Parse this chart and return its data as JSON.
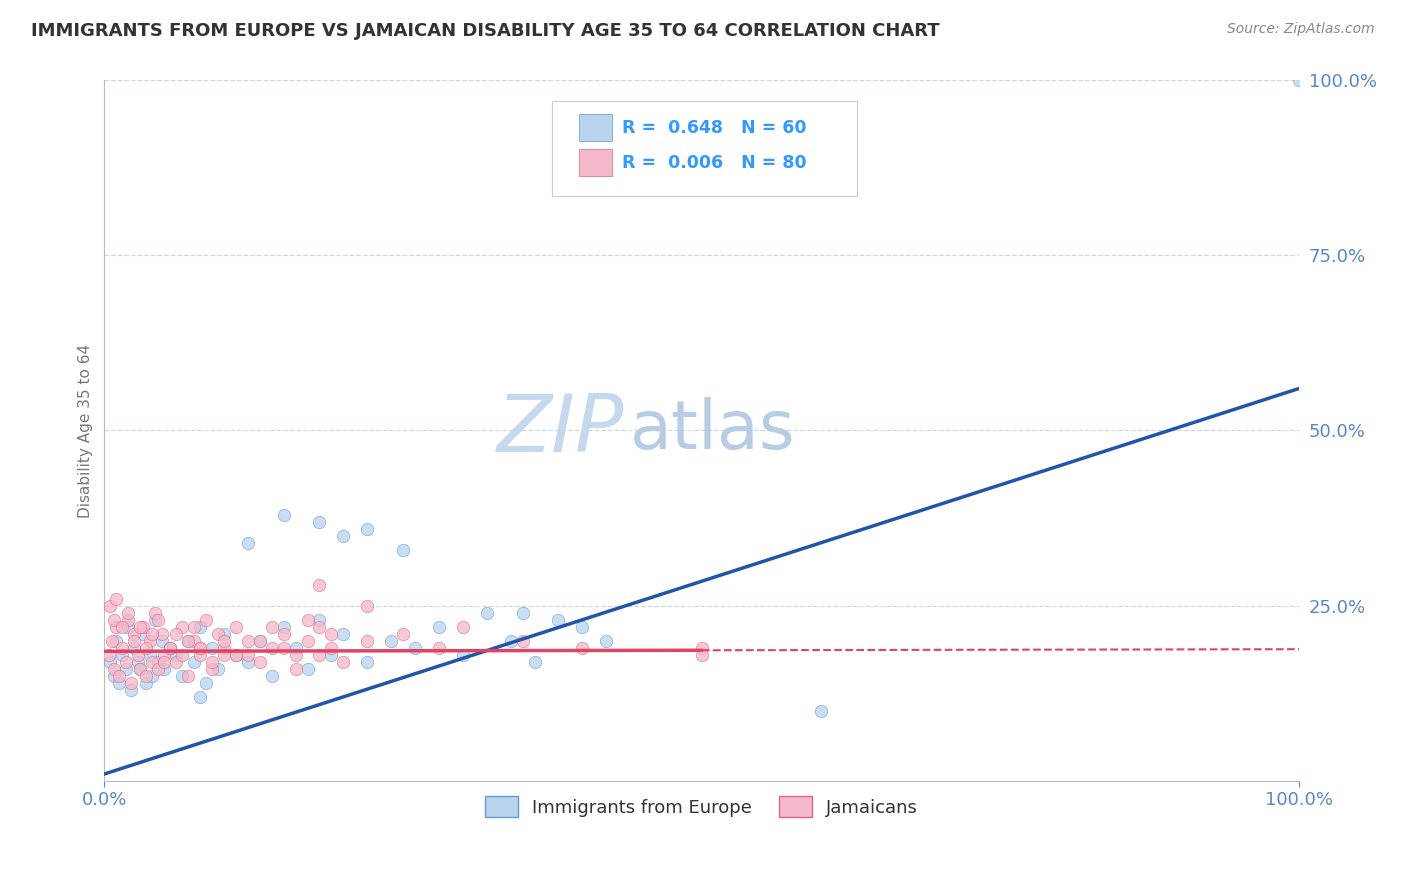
{
  "title": "IMMIGRANTS FROM EUROPE VS JAMAICAN DISABILITY AGE 35 TO 64 CORRELATION CHART",
  "source": "Source: ZipAtlas.com",
  "ylabel": "Disability Age 35 to 64",
  "xlim": [
    0,
    1.0
  ],
  "ylim": [
    0,
    1.0
  ],
  "xtick_labels": [
    "0.0%",
    "100.0%"
  ],
  "ytick_labels": [
    "100.0%",
    "75.0%",
    "50.0%",
    "25.0%"
  ],
  "ytick_positions": [
    1.0,
    0.75,
    0.5,
    0.25
  ],
  "grid_color": "#c8d8e8",
  "background_color": "#ffffff",
  "series": [
    {
      "name": "Immigrants from Europe",
      "color": "#b8d4ee",
      "edge_color": "#6699cc",
      "R": "0.648",
      "N": "60",
      "line_color": "#2255aa",
      "line_slope": 0.55,
      "line_intercept": 0.01,
      "scatter_x": [
        0.005,
        0.008,
        0.01,
        0.012,
        0.015,
        0.018,
        0.02,
        0.022,
        0.025,
        0.028,
        0.03,
        0.032,
        0.035,
        0.038,
        0.04,
        0.042,
        0.045,
        0.048,
        0.05,
        0.055,
        0.06,
        0.065,
        0.07,
        0.075,
        0.08,
        0.085,
        0.09,
        0.095,
        0.1,
        0.11,
        0.12,
        0.13,
        0.14,
        0.15,
        0.16,
        0.17,
        0.18,
        0.19,
        0.2,
        0.22,
        0.24,
        0.26,
        0.28,
        0.3,
        0.32,
        0.34,
        0.36,
        0.38,
        0.4,
        0.42,
        0.15,
        0.2,
        0.22,
        0.25,
        0.18,
        0.12,
        0.08,
        0.35,
        0.6,
        1.0
      ],
      "scatter_y": [
        0.17,
        0.15,
        0.2,
        0.14,
        0.18,
        0.16,
        0.22,
        0.13,
        0.19,
        0.17,
        0.16,
        0.21,
        0.14,
        0.18,
        0.15,
        0.23,
        0.17,
        0.2,
        0.16,
        0.19,
        0.18,
        0.15,
        0.2,
        0.17,
        0.22,
        0.14,
        0.19,
        0.16,
        0.21,
        0.18,
        0.17,
        0.2,
        0.15,
        0.22,
        0.19,
        0.16,
        0.23,
        0.18,
        0.21,
        0.17,
        0.2,
        0.19,
        0.22,
        0.18,
        0.24,
        0.2,
        0.17,
        0.23,
        0.22,
        0.2,
        0.38,
        0.35,
        0.36,
        0.33,
        0.37,
        0.34,
        0.12,
        0.24,
        0.1,
        1.0
      ],
      "marker_size": 80
    },
    {
      "name": "Jamaicans",
      "color": "#f5b8c8",
      "edge_color": "#dd6688",
      "R": "0.006",
      "N": "80",
      "line_color": "#dd4466",
      "line_slope": 0.003,
      "line_intercept": 0.185,
      "line_solid_end": 0.5,
      "scatter_x": [
        0.004,
        0.006,
        0.008,
        0.01,
        0.012,
        0.015,
        0.018,
        0.02,
        0.022,
        0.025,
        0.028,
        0.03,
        0.032,
        0.035,
        0.038,
        0.04,
        0.042,
        0.045,
        0.048,
        0.05,
        0.055,
        0.06,
        0.065,
        0.07,
        0.075,
        0.08,
        0.085,
        0.09,
        0.095,
        0.1,
        0.11,
        0.12,
        0.13,
        0.14,
        0.15,
        0.16,
        0.17,
        0.18,
        0.19,
        0.2,
        0.005,
        0.008,
        0.01,
        0.015,
        0.02,
        0.025,
        0.03,
        0.035,
        0.04,
        0.045,
        0.05,
        0.055,
        0.06,
        0.065,
        0.07,
        0.075,
        0.08,
        0.09,
        0.1,
        0.11,
        0.12,
        0.13,
        0.14,
        0.15,
        0.16,
        0.17,
        0.18,
        0.19,
        0.22,
        0.25,
        0.28,
        0.3,
        0.35,
        0.4,
        0.5,
        0.5,
        0.18,
        0.22,
        0.1,
        0.08
      ],
      "scatter_y": [
        0.18,
        0.2,
        0.16,
        0.22,
        0.15,
        0.19,
        0.17,
        0.23,
        0.14,
        0.21,
        0.18,
        0.16,
        0.22,
        0.15,
        0.2,
        0.17,
        0.24,
        0.16,
        0.21,
        0.18,
        0.19,
        0.17,
        0.22,
        0.15,
        0.2,
        0.18,
        0.23,
        0.16,
        0.21,
        0.19,
        0.18,
        0.2,
        0.17,
        0.22,
        0.19,
        0.16,
        0.23,
        0.18,
        0.21,
        0.17,
        0.25,
        0.23,
        0.26,
        0.22,
        0.24,
        0.2,
        0.22,
        0.19,
        0.21,
        0.23,
        0.17,
        0.19,
        0.21,
        0.18,
        0.2,
        0.22,
        0.19,
        0.17,
        0.2,
        0.22,
        0.18,
        0.2,
        0.19,
        0.21,
        0.18,
        0.2,
        0.22,
        0.19,
        0.2,
        0.21,
        0.19,
        0.22,
        0.2,
        0.19,
        0.19,
        0.18,
        0.28,
        0.25,
        0.18,
        0.19
      ],
      "marker_size": 80
    }
  ],
  "legend_R_color": "#3399ff",
  "title_color": "#333333",
  "axis_label_color": "#5588cc",
  "watermark_zip_color": "#c5d8ee",
  "watermark_atlas_color": "#b8cce4",
  "watermark_fontsize": 58,
  "title_fontsize": 13,
  "source_fontsize": 10,
  "tick_fontsize": 13
}
